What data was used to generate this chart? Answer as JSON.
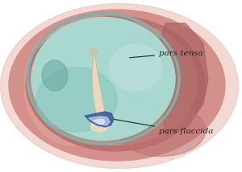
{
  "bg_color": "#ffffff",
  "tympanic_membrane_color": "#a8d8d0",
  "malleus_color": "#e8d8c0",
  "malleus_edge_color": "#c8b8a0",
  "pars_flaccida_blue_color": "#3a5a9a",
  "pars_flaccida_light_color": "#c0d0ee",
  "label_flaccida": "pars flaccida",
  "label_tensa": "pars tensa",
  "label_color": "#222222",
  "label_fontsize": 7.5,
  "arrow_color": "#222222",
  "figsize": [
    3.0,
    2.14
  ],
  "dpi": 100
}
